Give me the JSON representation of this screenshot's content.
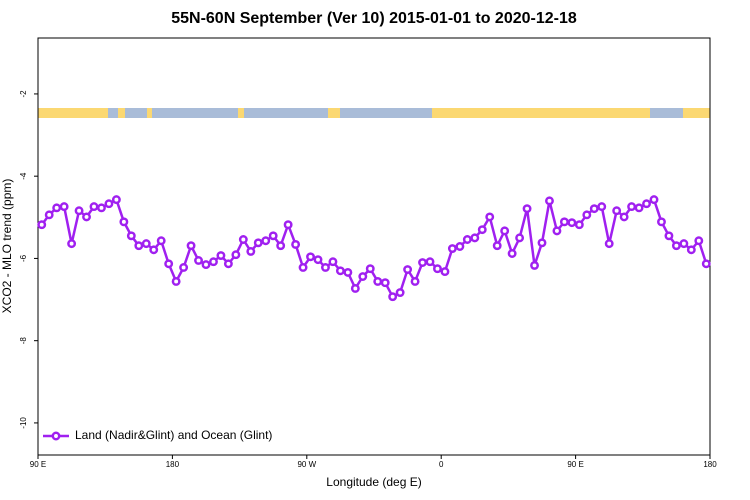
{
  "chart_data": {
    "type": "line",
    "title": "55N-60N September (Ver 10)   2015-01-01 to 2020-12-18",
    "x_label": "Longitude (deg E)",
    "y_label": "XCO2 - MLO trend (ppm)",
    "x": [
      92.5,
      97.5,
      102.5,
      107.5,
      112.5,
      117.5,
      122.5,
      127.5,
      132.5,
      137.5,
      142.5,
      147.5,
      152.5,
      157.5,
      162.5,
      167.5,
      172.5,
      177.5,
      182.5,
      187.5,
      192.5,
      197.5,
      202.5,
      207.5,
      212.5,
      217.5,
      222.5,
      227.5,
      232.5,
      237.5,
      242.5,
      247.5,
      252.5,
      257.5,
      262.5,
      267.5,
      272.5,
      277.5,
      282.5,
      287.5,
      292.5,
      297.5,
      302.5,
      307.5,
      312.5,
      317.5,
      322.5,
      327.5,
      332.5,
      337.5,
      342.5,
      347.5,
      352.5,
      357.5,
      362.5,
      367.5,
      372.5,
      377.5,
      382.5,
      387.5,
      392.5,
      397.5,
      402.5,
      407.5,
      412.5,
      417.5,
      422.5,
      427.5,
      432.5,
      437.5,
      442.5,
      447.5,
      452.5,
      457.5,
      462.5,
      467.5,
      472.5,
      477.5,
      482.5,
      487.5,
      492.5,
      497.5,
      502.5,
      507.5,
      512.5,
      517.5,
      522.5,
      527.5,
      532.5,
      537.5
    ],
    "series": [
      {
        "name": "Land (Nadir&Glint) and Ocean (Glint)",
        "color": "#a020f0",
        "values": [
          -5.18,
          -4.94,
          -4.77,
          -4.74,
          -5.64,
          -4.84,
          -4.99,
          -4.74,
          -4.77,
          -4.67,
          -4.57,
          -5.11,
          -5.45,
          -5.69,
          -5.64,
          -5.79,
          -5.57,
          -6.13,
          -6.56,
          -6.22,
          -5.69,
          -6.05,
          -6.15,
          -6.08,
          -5.93,
          -6.13,
          -5.91,
          -5.54,
          -5.83,
          -5.62,
          -5.57,
          -5.45,
          -5.69,
          -5.18,
          -5.66,
          -6.22,
          -5.96,
          -6.03,
          -6.22,
          -6.08,
          -6.3,
          -6.34,
          -6.73,
          -6.44,
          -6.25,
          -6.56,
          -6.59,
          -6.93,
          -6.83,
          -6.27,
          -6.56,
          -6.1,
          -6.08,
          -6.25,
          -6.32,
          -5.76,
          -5.71,
          -5.54,
          -5.5,
          -5.3,
          -4.99,
          -5.69,
          -5.33,
          -5.88,
          -5.5,
          -4.79,
          -6.17,
          -5.62,
          -4.6,
          -5.33,
          -5.11,
          -5.13,
          -5.18,
          -4.94,
          -4.79,
          -4.74,
          -5.64,
          -4.84,
          -4.99,
          -4.74,
          -4.77,
          -4.67,
          -4.57,
          -5.11,
          -5.45,
          -5.69,
          -5.64,
          -5.79,
          -5.57,
          -6.13
        ]
      }
    ],
    "xlim": [
      90,
      540
    ],
    "xticks": [
      {
        "value": 90,
        "label": "90 E"
      },
      180,
      {
        "value": 270,
        "label": "90 W"
      },
      {
        "value": 360,
        "label": "0"
      },
      {
        "value": 450,
        "label": "90 E"
      },
      {
        "value": 540,
        "label": "180"
      }
    ],
    "ylim": [
      -10.78,
      -0.64
    ],
    "yticks": [
      -2,
      -4,
      -6,
      -8,
      -10
    ],
    "legend": "bottom-left"
  }
}
